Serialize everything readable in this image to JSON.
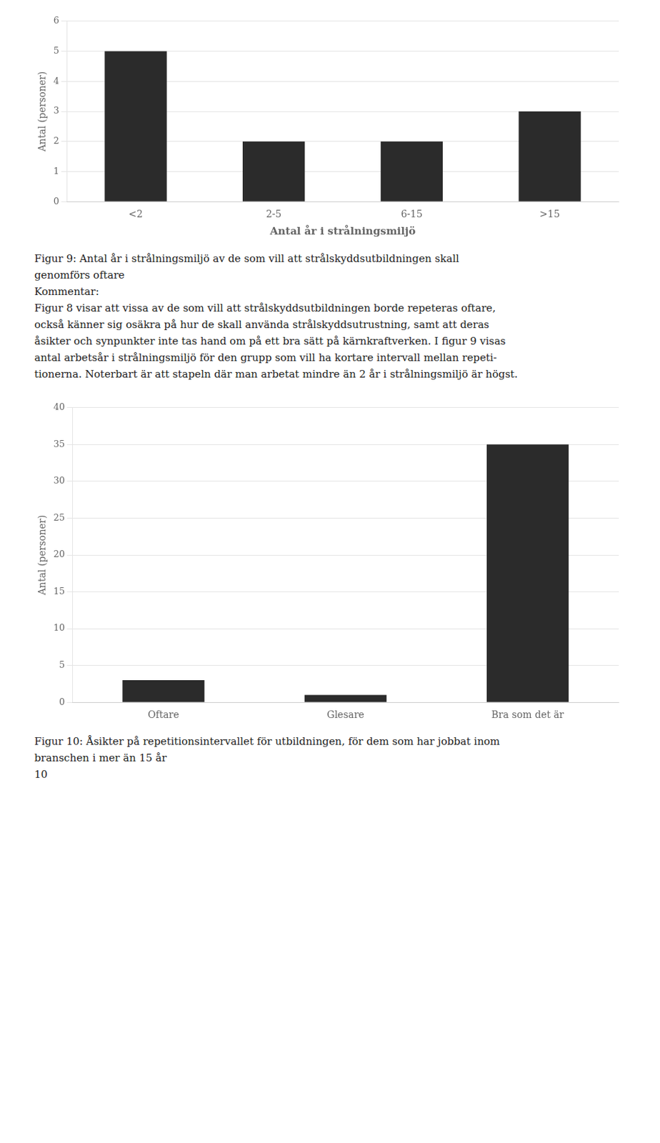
{
  "chart_data": [
    {
      "type": "bar",
      "categories": [
        "<2",
        "2-5",
        "6-15",
        ">15"
      ],
      "values": [
        5,
        2,
        2,
        3
      ],
      "x_label": "Antal år i strålningsmiljö",
      "y_label": "Antal (personer)",
      "color": "#2b2b2b",
      "ylim": [
        0,
        6
      ],
      "yticks": [
        0,
        1,
        2,
        3,
        4,
        5,
        6
      ],
      "grid": true,
      "annotations": [
        "Figur 9: Antal år i strålningsmiljö av de som vill att strålskyddsutbildningen skall",
        "genomförs oftare",
        "Kommentar:",
        "Figur 8 visar att vissa av de som vill att strålskyddsutbildningen borde repeteras oftare,",
        "också känner sig osäkra på hur de skall använda strålskyddsutrustning, samt att deras",
        "åsikter och synpunkter inte tas hand om på ett bra sätt på kärnkraftverken. I figur 9 visas",
        "antal arbetsår i strålningsmiljö för den grupp som vill ha kortare intervall mellan repeti-",
        "tionerna. Noterbart är att stapeln där man arbetat mindre än 2 år i strålningsmiljö är högst."
      ]
    },
    {
      "type": "bar",
      "categories": [
        "Oftare",
        "Glesare",
        "Bra som det är"
      ],
      "values": [
        3,
        1,
        35
      ],
      "y_label": "Antal (personer)",
      "color": "#2b2b2b",
      "ylim": [
        0,
        40
      ],
      "yticks": [
        0,
        5,
        10,
        15,
        20,
        25,
        30,
        35,
        40
      ],
      "grid": true,
      "annotations": [
        "Figur 10: Åsikter på repetitionsintervallet för utbildningen, för dem som har jobbat inom",
        "branschen i mer än 15 år",
        "10"
      ]
    }
  ]
}
